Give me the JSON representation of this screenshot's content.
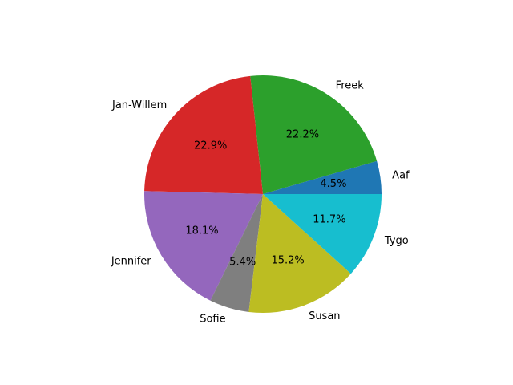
{
  "chart_data": {
    "type": "pie",
    "title": "",
    "start_angle_deg": 0,
    "direction": "counterclockwise",
    "slices": [
      {
        "label": "Aaf",
        "value": 4.5,
        "pct_label": "4.5%",
        "color": "#1f77b4"
      },
      {
        "label": "Freek",
        "value": 22.2,
        "pct_label": "22.2%",
        "color": "#2ca02c"
      },
      {
        "label": "Jan-Willem",
        "value": 22.9,
        "pct_label": "22.9%",
        "color": "#d62728"
      },
      {
        "label": "Jennifer",
        "value": 18.1,
        "pct_label": "18.1%",
        "color": "#9467bd"
      },
      {
        "label": "Sofie",
        "value": 5.4,
        "pct_label": "5.4%",
        "color": "#7f7f7f"
      },
      {
        "label": "Susan",
        "value": 15.2,
        "pct_label": "15.2%",
        "color": "#bcbd22"
      },
      {
        "label": "Tygo",
        "value": 11.7,
        "pct_label": "11.7%",
        "color": "#17becf"
      }
    ]
  }
}
